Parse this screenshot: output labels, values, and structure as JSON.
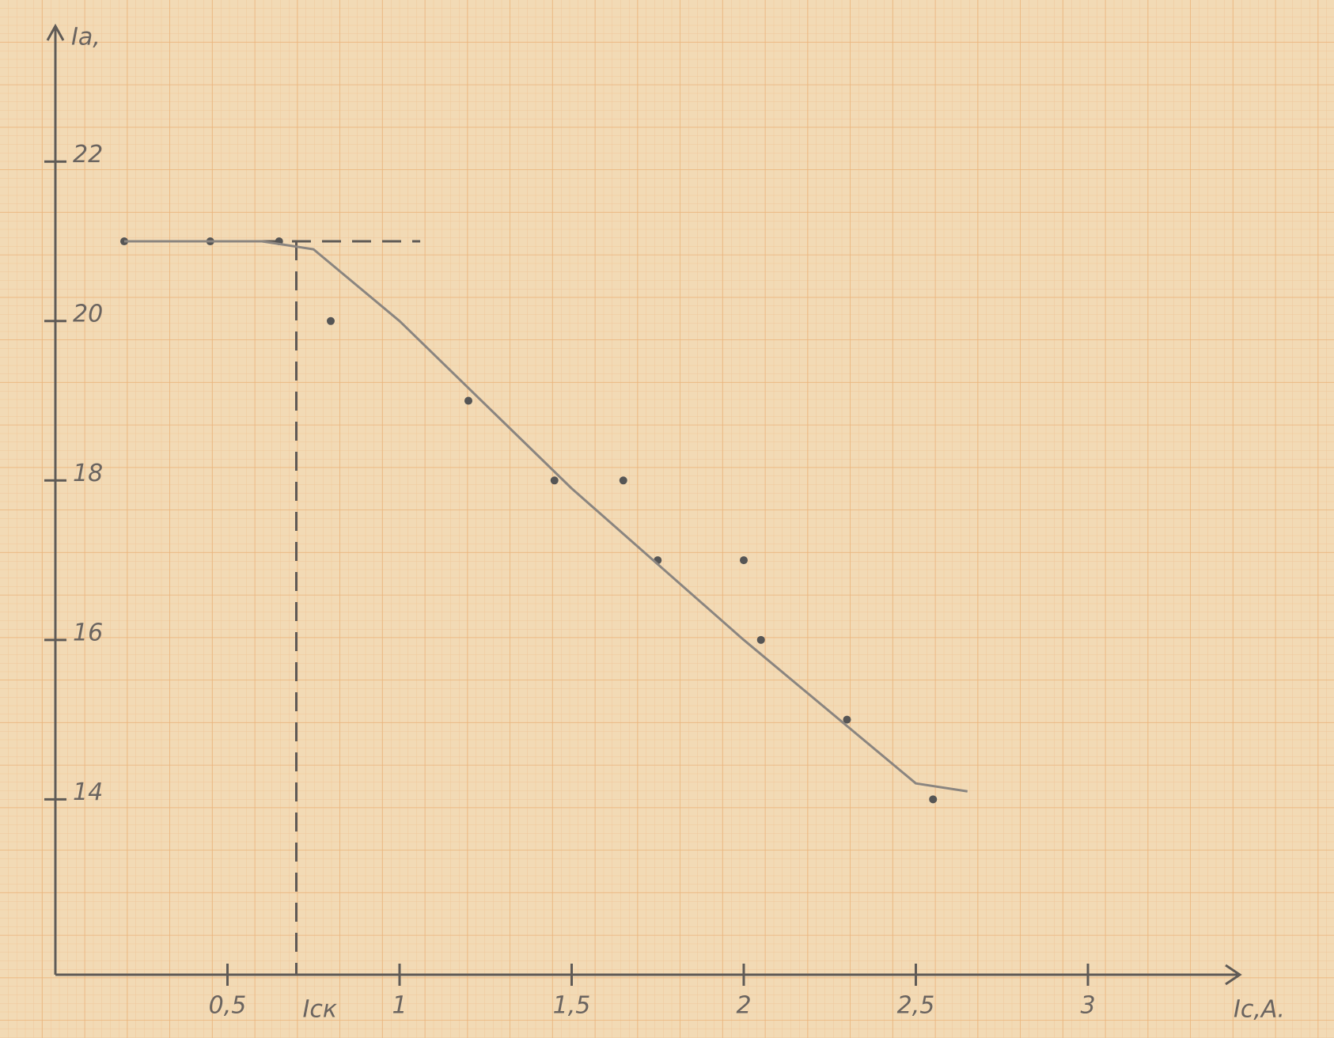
{
  "chart_data": {
    "type": "scatter",
    "x_label": "Iс,А.",
    "y_label": "Iа,",
    "xlim": [
      0,
      3.4
    ],
    "ylim": [
      11.8,
      23.7
    ],
    "xticks": [
      {
        "value": 0.5,
        "label": "0,5"
      },
      1,
      {
        "value": 1.5,
        "label": "1,5"
      },
      2,
      {
        "value": 2.5,
        "label": "2,5"
      },
      3
    ],
    "yticks": [
      14,
      16,
      18,
      20,
      22
    ],
    "series": [
      {
        "color": "#555555",
        "x": [
          0.2,
          0.45,
          0.65,
          0.8,
          1.2,
          1.45,
          1.65,
          1.75,
          2.0,
          2.05,
          2.3,
          2.55
        ],
        "values": [
          21,
          21,
          21,
          20,
          19,
          18,
          18,
          17,
          17,
          16,
          15,
          14
        ]
      },
      {
        "type": "line",
        "color": "#8a8580",
        "x": [
          0.2,
          0.6,
          0.75,
          1.0,
          1.5,
          2.0,
          2.5,
          2.65
        ],
        "values": [
          21,
          21,
          20.9,
          20,
          17.9,
          16,
          14.2,
          14.1
        ]
      }
    ],
    "reference_x": {
      "value": 0.7,
      "label": "Iск"
    },
    "reference_y": 21
  }
}
